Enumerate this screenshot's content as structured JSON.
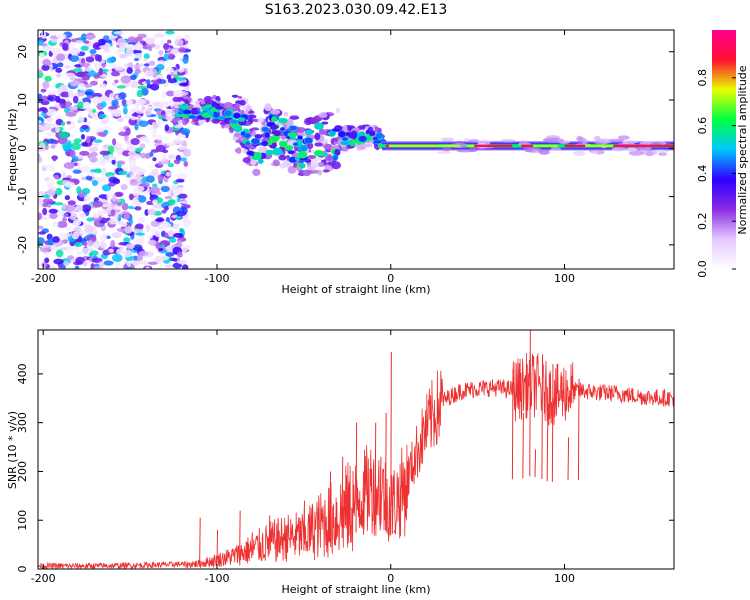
{
  "title": "S163.2023.030.09.42.E13",
  "chart_data": [
    {
      "type": "heatmap",
      "xlabel": "Height of straight line (km)",
      "ylabel": "Frequency (Hz)",
      "xlim": [
        -203,
        163
      ],
      "ylim": [
        -25,
        24.5
      ],
      "xticks": [
        -200,
        -100,
        0,
        100
      ],
      "yticks": [
        20,
        10,
        0,
        -10,
        -20
      ],
      "colorbar": {
        "label": "Normalized spectral amplitude",
        "range": [
          0,
          1
        ],
        "ticks": [
          0.0,
          0.2,
          0.4,
          0.6,
          0.8
        ],
        "colors": [
          "#ffffff",
          "#e6c8ff",
          "#8a2be2",
          "#2f00ff",
          "#00c8ff",
          "#00ff40",
          "#e8ff00",
          "#ff1030",
          "#ff0090"
        ]
      },
      "features": [
        {
          "name": "noise",
          "x_range": [
            -203,
            -125
          ],
          "f_range": [
            -25,
            24
          ],
          "amplitude": 0.12
        },
        {
          "name": "branch",
          "points": [
            [
              -125,
              8
            ],
            [
              -110,
              7.5
            ],
            [
              -100,
              8
            ],
            [
              -90,
              6
            ],
            [
              -82,
              3
            ],
            [
              -78,
              0
            ],
            [
              -70,
              3
            ],
            [
              -60,
              2
            ],
            [
              -50,
              0
            ],
            [
              -40,
              1
            ],
            [
              -30,
              2
            ],
            [
              -20,
              2
            ],
            [
              -10,
              3
            ],
            [
              -5,
              1
            ]
          ],
          "amplitude": 0.4
        },
        {
          "name": "tone",
          "x_range": [
            -5,
            163
          ],
          "f": 0.5,
          "amplitude": 0.9
        }
      ]
    },
    {
      "type": "line",
      "xlabel": "Height of straight line (km)",
      "ylabel": "SNR (10 * v/v)",
      "xlim": [
        -203,
        163
      ],
      "ylim": [
        0,
        490
      ],
      "xticks": [
        -200,
        -100,
        0,
        100
      ],
      "yticks": [
        0,
        100,
        200,
        300,
        400
      ],
      "color": "#ee3030",
      "x": [
        -203,
        -180,
        -150,
        -125,
        -110,
        -100,
        -90,
        -80,
        -70,
        -60,
        -50,
        -40,
        -30,
        -20,
        -10,
        -5,
        0,
        5,
        10,
        15,
        20,
        25,
        30,
        40,
        50,
        60,
        70,
        75,
        80,
        85,
        90,
        95,
        100,
        110,
        120,
        130,
        140,
        150,
        163
      ],
      "y": [
        5,
        5,
        6,
        8,
        12,
        20,
        30,
        45,
        60,
        70,
        75,
        100,
        120,
        150,
        185,
        170,
        140,
        160,
        190,
        240,
        285,
        320,
        345,
        365,
        370,
        372,
        368,
        370,
        380,
        375,
        360,
        355,
        365,
        365,
        362,
        360,
        355,
        352,
        350
      ],
      "spikes": [
        [
          -110,
          105
        ],
        [
          -100,
          80
        ],
        [
          -87,
          120
        ],
        [
          -80,
          75
        ],
        [
          -70,
          110
        ],
        [
          -60,
          90
        ],
        [
          -50,
          140
        ],
        [
          -42,
          125
        ],
        [
          -35,
          200
        ],
        [
          -28,
          230
        ],
        [
          -24,
          180
        ],
        [
          -20,
          300
        ],
        [
          -16,
          200
        ],
        [
          -9,
          300
        ],
        [
          -6,
          230
        ],
        [
          -3,
          320
        ],
        [
          0,
          445
        ],
        [
          2,
          80
        ],
        [
          70,
          410
        ],
        [
          76,
          320
        ],
        [
          80,
          490
        ],
        [
          83,
          245
        ],
        [
          87,
          440
        ],
        [
          90,
          300
        ],
        [
          93,
          420
        ],
        [
          102,
          270
        ],
        [
          108,
          390
        ]
      ]
    }
  ]
}
